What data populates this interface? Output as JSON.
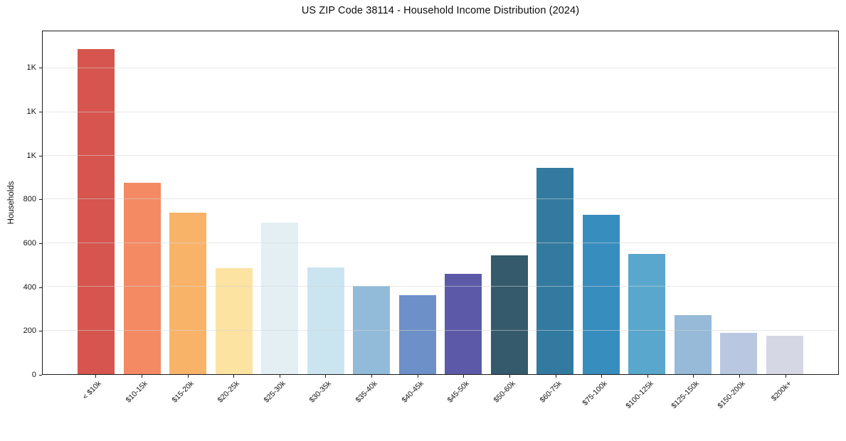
{
  "chart_data": {
    "type": "bar",
    "title": "US ZIP Code 38114 - Household Income Distribution (2024)",
    "xlabel": "",
    "ylabel": "Households",
    "categories": [
      "< $10k",
      "$10-15k",
      "$15-20k",
      "$20-25k",
      "$25-30k",
      "$30-35k",
      "$35-40k",
      "$40-45k",
      "$45-50k",
      "$50-60k",
      "$60-75k",
      "$75-100k",
      "$100-125k",
      "$125-150k",
      "$150-200k",
      "$200k+"
    ],
    "values": [
      1490,
      875,
      740,
      485,
      695,
      490,
      405,
      360,
      460,
      545,
      945,
      730,
      550,
      270,
      190,
      175
    ],
    "bar_colors": [
      "#d6554e",
      "#f38a64",
      "#f9b369",
      "#fce3a1",
      "#e3eff3",
      "#cbe5f0",
      "#92bbd9",
      "#6d90c8",
      "#5c5aa8",
      "#345a6c",
      "#337aa0",
      "#388dbf",
      "#5aa7cd",
      "#96bad8",
      "#b9c8e0",
      "#d6d7e5"
    ],
    "ylim": [
      0,
      1570
    ],
    "yticks": {
      "values": [
        0,
        200,
        400,
        600,
        800,
        1000,
        1200,
        1400
      ],
      "labels": [
        "0",
        "200",
        "400",
        "600",
        "800",
        "1K",
        "1K",
        "1K"
      ]
    },
    "grid": "horizontal-light",
    "gridline_color": "#e9e9e9",
    "spine_color": "#1c1c1c",
    "legend": "none",
    "x_tick_rotation_deg": 45,
    "background": "#ffffff"
  }
}
